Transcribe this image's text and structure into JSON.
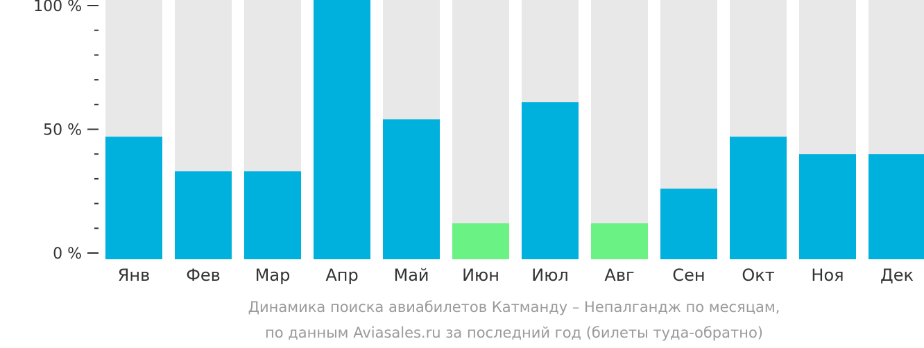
{
  "chart_data": {
    "type": "bar",
    "categories": [
      "Янв",
      "Фев",
      "Мар",
      "Апр",
      "Май",
      "Июн",
      "Июл",
      "Авг",
      "Сен",
      "Окт",
      "Ноя",
      "Дек"
    ],
    "values": [
      47,
      33,
      33,
      100,
      54,
      12,
      61,
      12,
      26,
      47,
      40,
      40
    ],
    "ylim": [
      0,
      100
    ],
    "yticks": [
      {
        "value": 0,
        "label": "0 %"
      },
      {
        "value": 50,
        "label": "50 %"
      },
      {
        "value": 100,
        "label": "100 %"
      }
    ],
    "minor_tick_step": 10,
    "grid": false,
    "colors": {
      "bar": "#00b1dd",
      "bar_low": "#6af285",
      "background_bar": "#e8e8e8",
      "axis": "#333333"
    },
    "low_months": [
      "Июн",
      "Авг"
    ]
  },
  "caption": {
    "line1": "Динамика поиска авиабилетов Катманду – Непалгандж по месяцам,",
    "line2": "по данным Aviasales.ru за последний год (билеты туда-обратно)"
  }
}
